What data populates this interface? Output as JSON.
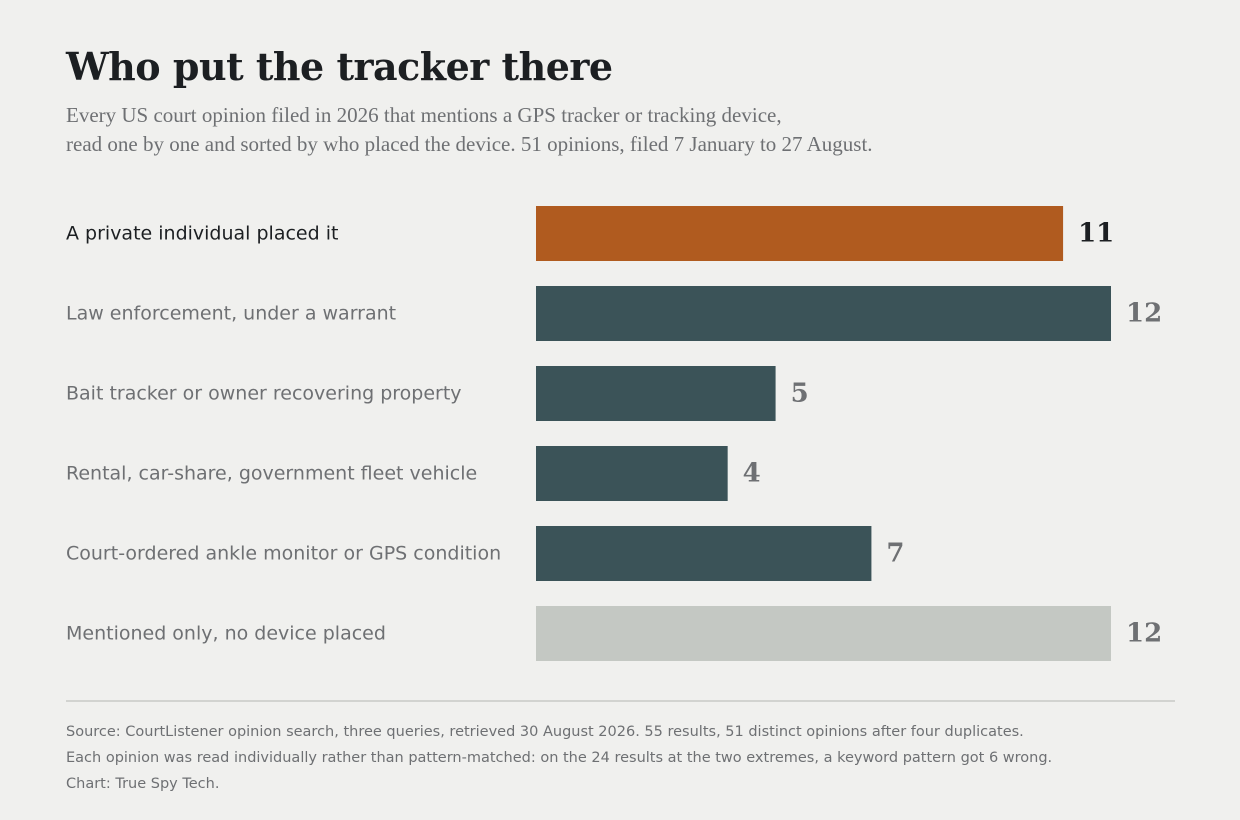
{
  "title": "Who put the tracker there",
  "subtitle": [
    "Every US court opinion filed in 2026 that mentions a GPS tracker or tracking device,",
    "read one by one and sorted by who placed the device. 51 opinions, filed 7 January to 27 August."
  ],
  "chart_data": {
    "type": "bar",
    "orientation": "horizontal",
    "categories": [
      "A private individual placed it",
      "Law enforcement, under a warrant",
      "Bait tracker or owner recovering property",
      "Rental, car-share, government fleet vehicle",
      "Court-ordered ankle monitor or GPS condition",
      "Mentioned only, no device placed"
    ],
    "values": [
      11,
      12,
      5,
      4,
      7,
      12
    ],
    "value_labels": [
      "11",
      "12",
      "5",
      "4",
      "7",
      "12"
    ],
    "xlim": [
      0,
      12
    ],
    "grid": false,
    "colors": [
      "#b05b1f",
      "#3b5358",
      "#3b5358",
      "#3b5358",
      "#3b5358",
      "#c4c8c3"
    ],
    "label_colors": [
      "#1c1f22",
      "#6e7073",
      "#6e7073",
      "#6e7073",
      "#6e7073",
      "#6e7073"
    ],
    "value_colors": [
      "#1c1f22",
      "#6e7073",
      "#6e7073",
      "#6e7073",
      "#6e7073",
      "#6e7073"
    ]
  },
  "notes": [
    "Source: CourtListener opinion search, three queries, retrieved 30 August 2026. 55 results, 51 distinct opinions after four duplicates.",
    "Each opinion was read individually rather than pattern-matched: on the 24 results at the two extremes, a keyword pattern got 6 wrong.",
    "Chart: True Spy Tech."
  ]
}
